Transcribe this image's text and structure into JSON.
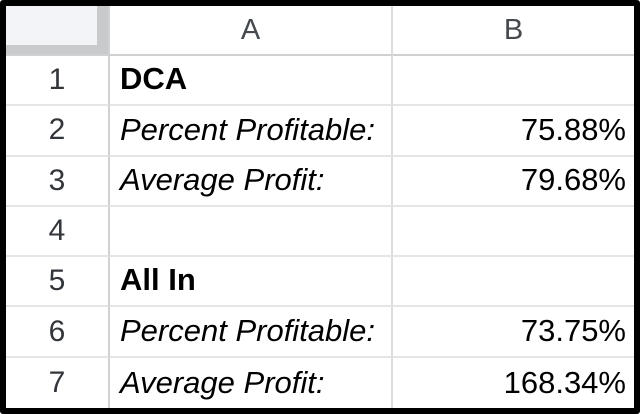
{
  "sheet": {
    "column_headers": [
      "A",
      "B"
    ],
    "rows": [
      {
        "num": "1",
        "a": "DCA",
        "b": ""
      },
      {
        "num": "2",
        "a": "Percent Profitable:",
        "b": "75.88%"
      },
      {
        "num": "3",
        "a": "Average Profit:",
        "b": "79.68%"
      },
      {
        "num": "4",
        "a": "",
        "b": ""
      },
      {
        "num": "5",
        "a": "All In",
        "b": ""
      },
      {
        "num": "6",
        "a": "Percent Profitable:",
        "b": "73.75%"
      },
      {
        "num": "7",
        "a": "Average Profit:",
        "b": "168.34%"
      }
    ],
    "colors": {
      "outer_border": "#000000",
      "grid_line": "#dcdddd",
      "row_line": "#e4e5e5",
      "header_text": "#46494d",
      "row_number_text": "#323539",
      "cell_text": "#000000",
      "corner_fill": "#f2f4f7",
      "corner_edge": "#c9cacc"
    }
  }
}
